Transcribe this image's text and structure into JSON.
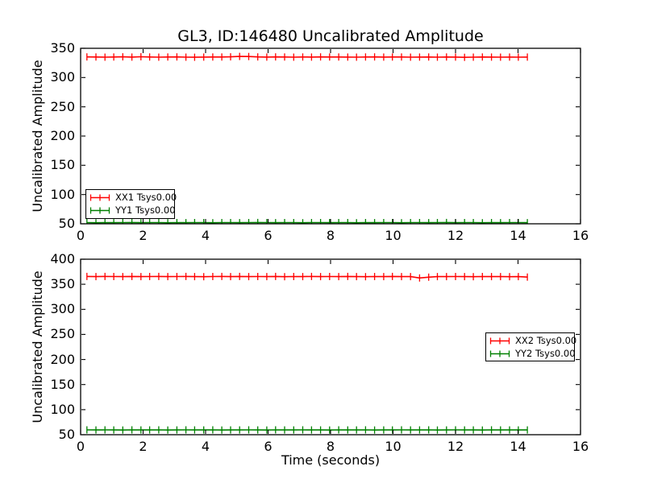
{
  "figure": {
    "background": "#ffffff",
    "axes_color": "#000000",
    "text_color": "#000000"
  },
  "chart_data": [
    {
      "type": "line",
      "title": "GL3, ID:146480 Uncalibrated Amplitude",
      "xlabel": "",
      "ylabel": "Uncalibrated Amplitude",
      "xlim": [
        0,
        16
      ],
      "ylim": [
        50,
        350
      ],
      "xticks": [
        0,
        2,
        4,
        6,
        8,
        10,
        12,
        14,
        16
      ],
      "yticks": [
        50,
        100,
        150,
        200,
        250,
        300,
        350
      ],
      "grid": false,
      "legend_position": "lower left",
      "marker": "plus-errorbar",
      "x": [
        0.2,
        0.49,
        0.78,
        1.06,
        1.35,
        1.64,
        1.93,
        2.21,
        2.5,
        2.79,
        3.08,
        3.37,
        3.65,
        3.94,
        4.23,
        4.52,
        4.8,
        5.09,
        5.38,
        5.67,
        5.96,
        6.24,
        6.53,
        6.82,
        7.11,
        7.39,
        7.68,
        7.97,
        8.26,
        8.55,
        8.83,
        9.12,
        9.41,
        9.7,
        9.98,
        10.27,
        10.56,
        10.85,
        11.14,
        11.42,
        11.71,
        12.0,
        12.29,
        12.57,
        12.86,
        13.15,
        13.44,
        13.73,
        14.01,
        14.3
      ],
      "series": [
        {
          "name": "XX1 Tsys0.00",
          "color": "#ff0000",
          "y": [
            335.3,
            335.1,
            334.9,
            335.2,
            335.4,
            335.0,
            335.5,
            335.2,
            334.8,
            335.1,
            335.3,
            334.9,
            334.7,
            335.0,
            335.2,
            335.1,
            335.4,
            336.1,
            335.9,
            335.3,
            335.0,
            335.3,
            335.1,
            334.9,
            335.2,
            335.0,
            335.3,
            335.1,
            335.2,
            335.0,
            334.9,
            335.1,
            335.3,
            335.0,
            335.2,
            335.1,
            334.9,
            335.0,
            335.2,
            334.8,
            335.1,
            335.0,
            334.6,
            334.9,
            335.1,
            335.0,
            334.8,
            335.0,
            334.9,
            335.0
          ]
        },
        {
          "name": "YY1 Tsys0.00",
          "color": "#008000",
          "y": [
            52.0,
            51.8,
            52.1,
            51.9,
            52.0,
            52.2,
            51.9,
            52.0,
            52.1,
            51.8,
            52.0,
            51.9,
            52.1,
            52.0,
            51.8,
            52.0,
            52.1,
            51.9,
            52.0,
            52.2,
            52.0,
            51.9,
            52.1,
            52.0,
            51.8,
            52.0,
            52.1,
            51.9,
            52.0,
            52.1,
            51.8,
            52.0,
            51.9,
            52.1,
            52.0,
            51.8,
            52.0,
            52.1,
            51.9,
            52.0,
            52.2,
            51.9,
            52.0,
            52.1,
            51.8,
            52.0,
            51.9,
            52.1,
            52.0,
            51.9
          ]
        }
      ]
    },
    {
      "type": "line",
      "title": "",
      "xlabel": "Time (seconds)",
      "ylabel": "Uncalibrated Amplitude",
      "xlim": [
        0,
        16
      ],
      "ylim": [
        50,
        400
      ],
      "xticks": [
        0,
        2,
        4,
        6,
        8,
        10,
        12,
        14,
        16
      ],
      "yticks": [
        50,
        100,
        150,
        200,
        250,
        300,
        350,
        400
      ],
      "grid": false,
      "legend_position": "center right",
      "marker": "plus-errorbar",
      "x": [
        0.2,
        0.49,
        0.78,
        1.06,
        1.35,
        1.64,
        1.93,
        2.21,
        2.5,
        2.79,
        3.08,
        3.37,
        3.65,
        3.94,
        4.23,
        4.52,
        4.8,
        5.09,
        5.38,
        5.67,
        5.96,
        6.24,
        6.53,
        6.82,
        7.11,
        7.39,
        7.68,
        7.97,
        8.26,
        8.55,
        8.83,
        9.12,
        9.41,
        9.7,
        9.98,
        10.27,
        10.56,
        10.85,
        11.14,
        11.42,
        11.71,
        12.0,
        12.29,
        12.57,
        12.86,
        13.15,
        13.44,
        13.73,
        14.01,
        14.3
      ],
      "series": [
        {
          "name": "XX2 Tsys0.00",
          "color": "#ff0000",
          "y": [
            365.6,
            365.4,
            365.7,
            365.5,
            365.3,
            365.6,
            365.4,
            365.5,
            365.7,
            365.3,
            365.5,
            365.6,
            365.4,
            365.2,
            365.5,
            365.7,
            365.4,
            365.6,
            365.3,
            365.5,
            365.4,
            365.6,
            365.2,
            365.5,
            365.3,
            365.6,
            365.4,
            365.5,
            365.3,
            365.6,
            365.4,
            365.2,
            365.5,
            365.3,
            365.6,
            365.4,
            365.3,
            362.6,
            364.2,
            365.4,
            365.3,
            365.5,
            365.4,
            365.2,
            365.5,
            365.3,
            365.4,
            365.2,
            365.3,
            364.4
          ]
        },
        {
          "name": "YY2 Tsys0.00",
          "color": "#008000",
          "y": [
            59.6,
            59.4,
            59.7,
            59.5,
            59.3,
            59.6,
            59.4,
            59.5,
            59.7,
            59.3,
            59.5,
            59.6,
            59.4,
            59.5,
            59.6,
            59.3,
            59.5,
            59.4,
            59.6,
            59.5,
            59.3,
            59.6,
            59.4,
            59.5,
            59.6,
            59.4,
            59.5,
            59.3,
            59.6,
            59.4,
            59.5,
            59.6,
            59.3,
            59.5,
            59.4,
            59.6,
            59.5,
            59.4,
            59.6,
            59.3,
            59.5,
            59.6,
            59.4,
            59.5,
            59.3,
            59.6,
            59.4,
            59.5,
            59.4,
            59.5
          ]
        }
      ]
    }
  ]
}
